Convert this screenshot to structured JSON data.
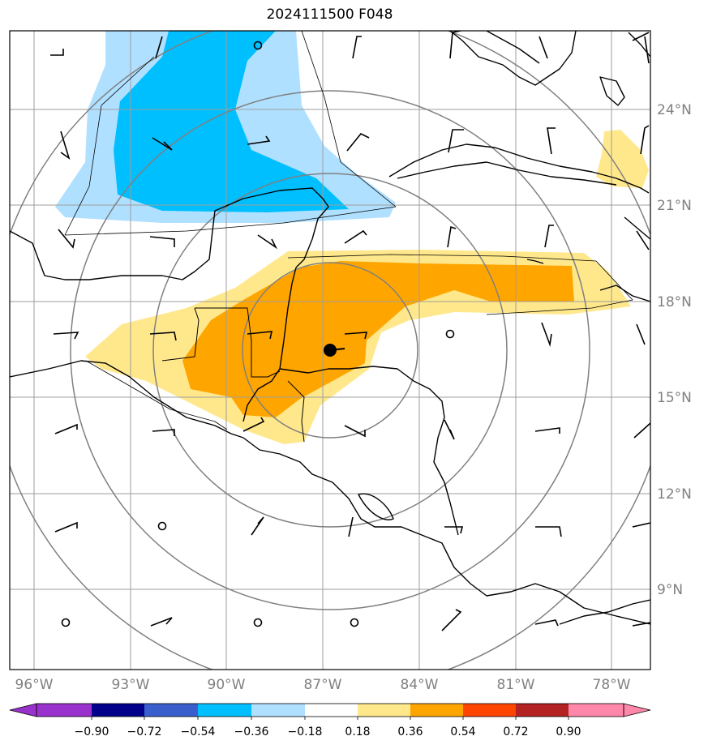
{
  "title": "2024111500 F048",
  "lon_labels": [
    "96°W",
    "93°W",
    "90°W",
    "87°W",
    "84°W",
    "81°W",
    "78°W"
  ],
  "lat_labels": [
    "24°N",
    "21°N",
    "18°N",
    "15°N",
    "12°N",
    "9°N"
  ],
  "colorbar": {
    "ticks": [
      "−0.90",
      "−0.72",
      "−0.54",
      "−0.36",
      "−0.18",
      "0.18",
      "0.36",
      "0.54",
      "0.72",
      "0.90"
    ],
    "colors": [
      "#9932cc",
      "#00008b",
      "#3a5fcd",
      "#00bfff",
      "#b0e0ff",
      "#ffffff",
      "#ffe88c",
      "#ffa500",
      "#ff4500",
      "#b22222",
      "#ff88aa"
    ]
  },
  "colors": {
    "light_blue": "#b0e0ff",
    "deep_sky_blue": "#00bfff",
    "light_yellow": "#ffe88c",
    "orange": "#ffa500",
    "grid": "#9e9e9e",
    "coastline": "#000000"
  }
}
